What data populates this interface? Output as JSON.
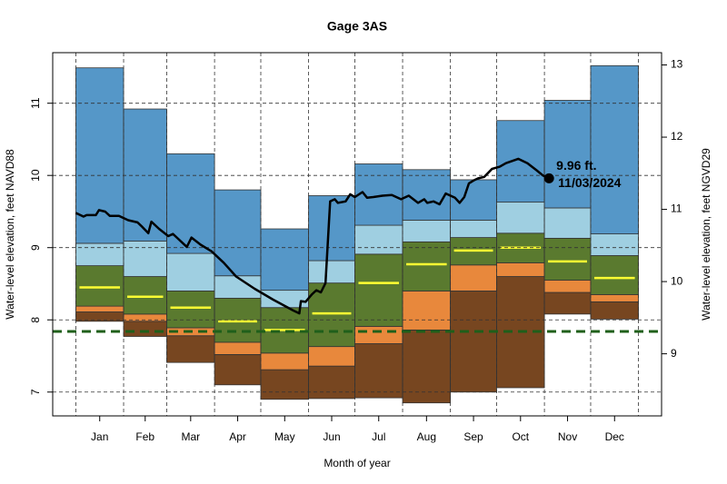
{
  "chart_data": {
    "type": "band-line",
    "title": "Gage 3AS",
    "x_label": "Month of year",
    "y_label": "Water-level elevation, feet NAVD88",
    "y2_label": "Water-level elevation, feet NGVD29",
    "xlim": [
      -15,
      380
    ],
    "ylim": [
      6.67,
      11.7
    ],
    "y2lim": [
      8.14,
      13.17
    ],
    "yticks": [
      7,
      8,
      9,
      10,
      11
    ],
    "y2ticks": [
      9,
      10,
      11,
      12,
      13
    ],
    "xticks": [
      {
        "value": 15.5,
        "label": "Jan"
      },
      {
        "value": 45,
        "label": "Feb"
      },
      {
        "value": 74.5,
        "label": "Mar"
      },
      {
        "value": 105,
        "label": "Apr"
      },
      {
        "value": 135.5,
        "label": "May"
      },
      {
        "value": 166,
        "label": "Jun"
      },
      {
        "value": 196.5,
        "label": "Jul"
      },
      {
        "value": 227.5,
        "label": "Aug"
      },
      {
        "value": 258,
        "label": "Sep"
      },
      {
        "value": 288.5,
        "label": "Oct"
      },
      {
        "value": 319,
        "label": "Nov"
      },
      {
        "value": 349.5,
        "label": "Dec"
      }
    ],
    "month_boundaries": [
      0,
      31,
      59,
      90,
      120,
      151,
      181,
      212,
      243,
      273,
      304,
      334,
      365
    ],
    "grid": true,
    "levels": [
      [
        7.98,
        7.77,
        7.41,
        7.1,
        6.9,
        6.91,
        6.92,
        6.85,
        7.0,
        7.06,
        8.08,
        8.01
      ],
      [
        8.11,
        7.98,
        7.78,
        7.52,
        7.31,
        7.36,
        7.67,
        7.86,
        8.4,
        8.6,
        8.38,
        8.25
      ],
      [
        8.19,
        8.08,
        7.89,
        7.69,
        7.54,
        7.63,
        7.91,
        8.4,
        8.76,
        8.79,
        8.55,
        8.35
      ],
      [
        8.75,
        8.6,
        8.4,
        8.3,
        8.17,
        8.51,
        8.91,
        9.08,
        9.14,
        9.2,
        9.13,
        8.89
      ],
      [
        9.06,
        9.09,
        8.92,
        8.61,
        8.41,
        8.82,
        9.31,
        9.38,
        9.38,
        9.63,
        9.55,
        9.19
      ],
      [
        11.49,
        10.92,
        10.3,
        9.8,
        9.26,
        9.72,
        10.16,
        10.08,
        9.94,
        10.76,
        11.04,
        11.52
      ]
    ],
    "band_colors": [
      "#774620",
      "#e8883c",
      "#5a7a2f",
      "#9fcfe1",
      "#5597c8"
    ],
    "median": [
      8.45,
      8.32,
      8.17,
      7.98,
      7.86,
      8.09,
      8.51,
      8.77,
      8.96,
      9.0,
      8.81,
      8.58
    ],
    "median_color": "#ffff33",
    "reference_line": {
      "value": 7.84,
      "color": "#1f5f1a"
    },
    "line": {
      "color": "#000000",
      "x": [
        0,
        5,
        7,
        13,
        15,
        19,
        22,
        28,
        34,
        40,
        43,
        47,
        49,
        54,
        60,
        63,
        66,
        72,
        75,
        81,
        88,
        96,
        104,
        116,
        128,
        141,
        145,
        146,
        149,
        153,
        156,
        159,
        162,
        165,
        168,
        170,
        175,
        178,
        181,
        186,
        189,
        193,
        199,
        205,
        211,
        216,
        222,
        226,
        228,
        232,
        236,
        240,
        246,
        249,
        252,
        255,
        258,
        261,
        265,
        270,
        275,
        279,
        287,
        293,
        299,
        303,
        307
      ],
      "values": [
        9.48,
        9.43,
        9.45,
        9.45,
        9.52,
        9.5,
        9.44,
        9.44,
        9.38,
        9.35,
        9.29,
        9.2,
        9.36,
        9.26,
        9.16,
        9.19,
        9.13,
        9.01,
        9.14,
        9.04,
        8.95,
        8.79,
        8.6,
        8.43,
        8.28,
        8.13,
        8.09,
        8.26,
        8.25,
        8.35,
        8.41,
        8.38,
        8.51,
        9.64,
        9.67,
        9.62,
        9.64,
        9.74,
        9.7,
        9.77,
        9.69,
        9.7,
        9.72,
        9.73,
        9.67,
        9.72,
        9.62,
        9.67,
        9.62,
        9.64,
        9.6,
        9.75,
        9.69,
        9.62,
        9.7,
        9.89,
        9.93,
        9.96,
        9.98,
        10.09,
        10.12,
        10.17,
        10.23,
        10.17,
        10.07,
        10.0,
        9.96
      ],
      "end_labels": [
        "9.96 ft.",
        "11/03/2024"
      ]
    }
  }
}
